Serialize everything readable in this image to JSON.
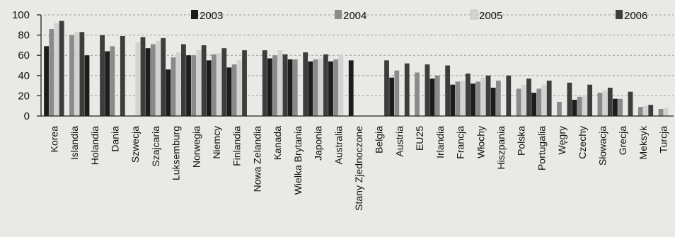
{
  "chart_data": {
    "type": "bar",
    "title": "",
    "xlabel": "",
    "ylabel": "",
    "ylim": [
      0,
      100
    ],
    "yticks": [
      0,
      20,
      40,
      60,
      80,
      100
    ],
    "grid": true,
    "legend_position": "top",
    "categories": [
      "Korea",
      "Islandia",
      "Holandia",
      "Dania",
      "Szwecja",
      "Szajcaria",
      "Luksemburg",
      "Norwegia",
      "Niemcy",
      "Finlandia",
      "Nowa Zelandia",
      "Kanada",
      "Wielka Brytania",
      "Japonia",
      "Australia",
      "Stany Zjednoczone",
      "Belgia",
      "Austria",
      "EU25",
      "Irlandia",
      "Francja",
      "Włochy",
      "Hiszpania",
      "Polska",
      "Portugalia",
      "Węgry",
      "Czechy",
      "Słowacja",
      "Grecja",
      "Meksyk",
      "Turcja"
    ],
    "series": [
      {
        "name": "2003",
        "color": "#1c1c1c",
        "values": [
          69,
          null,
          60,
          64,
          null,
          67,
          46,
          60,
          55,
          48,
          null,
          57,
          56,
          54,
          54,
          55,
          null,
          38,
          null,
          37,
          31,
          32,
          28,
          null,
          23,
          null,
          16,
          null,
          17,
          null,
          null
        ]
      },
      {
        "name": "2004",
        "color": "#8a8a8a",
        "values": [
          86,
          80,
          null,
          69,
          null,
          71,
          58,
          60,
          61,
          51,
          null,
          60,
          56,
          56,
          56,
          null,
          null,
          45,
          43,
          40,
          34,
          34,
          35,
          27,
          27,
          14,
          19,
          23,
          17,
          9,
          7
        ]
      },
      {
        "name": "2005",
        "color": "#d2d2d2",
        "values": [
          92,
          83,
          null,
          null,
          73,
          74,
          63,
          65,
          62,
          55,
          null,
          65,
          null,
          57,
          61,
          null,
          null,
          null,
          null,
          null,
          35,
          38,
          null,
          31,
          31,
          null,
          21,
          25,
          null,
          10,
          8
        ]
      },
      {
        "name": "2006",
        "color": "#3d3d3d",
        "values": [
          94,
          83,
          80,
          79,
          78,
          77,
          71,
          70,
          67,
          65,
          65,
          61,
          63,
          61,
          null,
          null,
          55,
          52,
          51,
          50,
          42,
          40,
          40,
          37,
          35,
          33,
          31,
          28,
          24,
          11,
          null
        ]
      }
    ]
  }
}
